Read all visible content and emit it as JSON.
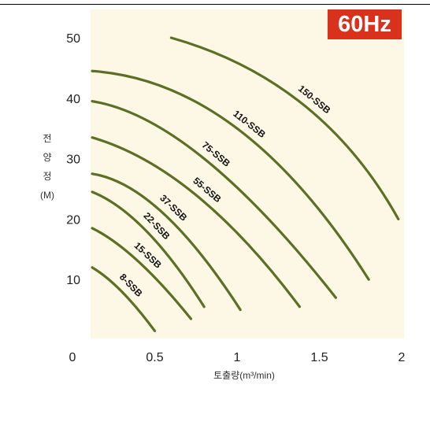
{
  "chart_data": {
    "type": "line",
    "badge": "60Hz",
    "ylabel": "전 양 정 (M)",
    "xlabel": "토출량(m³/min)",
    "x_ticks": [
      "0",
      "0.5",
      "1",
      "1.5",
      "2"
    ],
    "y_ticks": [
      "10",
      "20",
      "30",
      "40",
      "50"
    ],
    "xlim": [
      0,
      2
    ],
    "ylim": [
      0,
      55
    ],
    "colors": {
      "curve": "#5b7023",
      "plot_bg": "#fdf7e6",
      "badge_bg": "#d8311c"
    },
    "series": [
      {
        "name": "8-SSB",
        "x": [
          0.12,
          0.3,
          0.5
        ],
        "y": [
          12,
          8,
          1.5
        ]
      },
      {
        "name": "15-SSB",
        "x": [
          0.12,
          0.4,
          0.72
        ],
        "y": [
          18.5,
          13,
          3.5
        ]
      },
      {
        "name": "22-SSB",
        "x": [
          0.12,
          0.45,
          0.8
        ],
        "y": [
          24.5,
          18,
          5.5
        ]
      },
      {
        "name": "37-SSB",
        "x": [
          0.12,
          0.55,
          1.02
        ],
        "y": [
          27.5,
          21,
          5
        ]
      },
      {
        "name": "55-SSB",
        "x": [
          0.12,
          0.75,
          1.38
        ],
        "y": [
          33.5,
          24,
          5.5
        ]
      },
      {
        "name": "75-SSB",
        "x": [
          0.12,
          0.8,
          1.6
        ],
        "y": [
          39.5,
          30,
          7
        ]
      },
      {
        "name": "110-SSB",
        "x": [
          0.12,
          1.0,
          1.8
        ],
        "y": [
          44.5,
          35,
          10
        ]
      },
      {
        "name": "150-SSB",
        "x": [
          0.6,
          1.4,
          1.98
        ],
        "y": [
          50,
          39,
          20
        ]
      }
    ]
  }
}
